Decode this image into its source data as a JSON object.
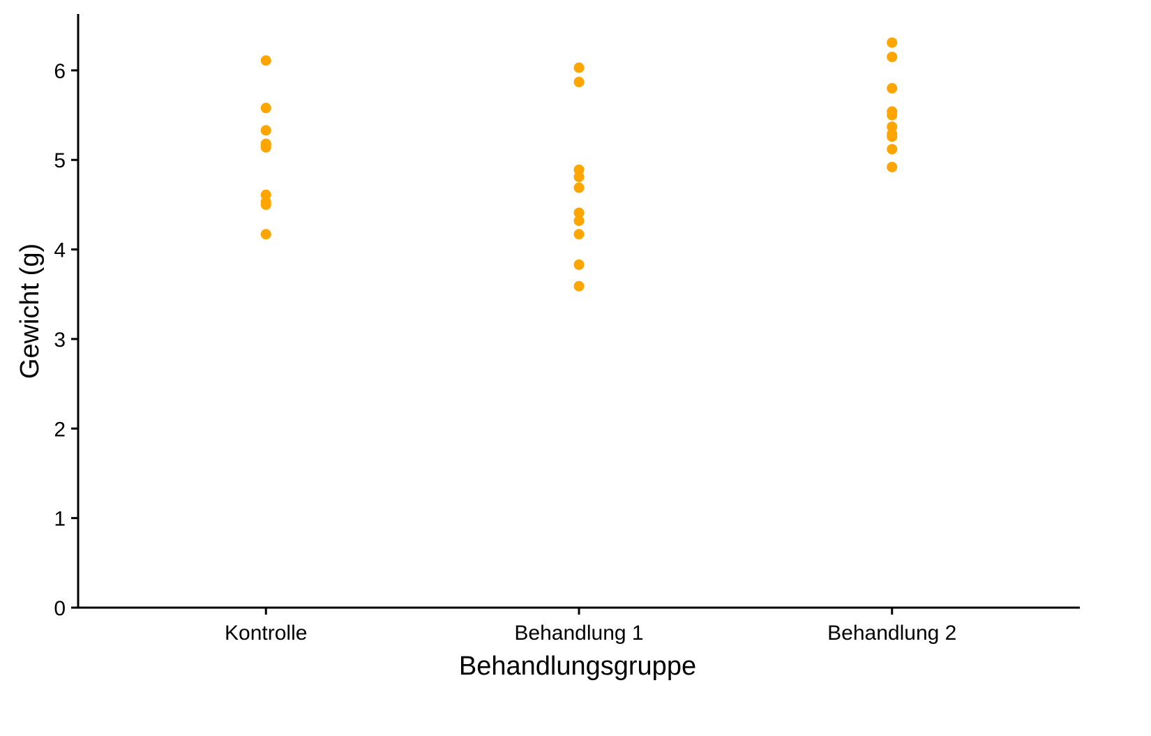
{
  "chart_data": {
    "type": "scatter",
    "title": "",
    "xlabel": "Behandlungsgruppe",
    "ylabel": "Gewicht (g)",
    "categories": [
      "Kontrolle",
      "Behandlung 1",
      "Behandlung 2"
    ],
    "ylim": [
      0,
      6.63
    ],
    "yticks": [
      0,
      1,
      2,
      3,
      4,
      5,
      6
    ],
    "grid": false,
    "point_color": "#FFA500",
    "series": [
      {
        "category": "Kontrolle",
        "values": [
          4.17,
          5.58,
          5.18,
          6.11,
          4.5,
          4.61,
          5.17,
          4.53,
          5.33,
          5.14
        ]
      },
      {
        "category": "Behandlung 1",
        "values": [
          4.81,
          4.17,
          4.41,
          3.59,
          5.87,
          3.83,
          6.03,
          4.89,
          4.32,
          4.69
        ]
      },
      {
        "category": "Behandlung 2",
        "values": [
          6.31,
          5.12,
          5.54,
          5.5,
          5.37,
          5.29,
          4.92,
          6.15,
          5.8,
          5.26
        ]
      }
    ]
  }
}
